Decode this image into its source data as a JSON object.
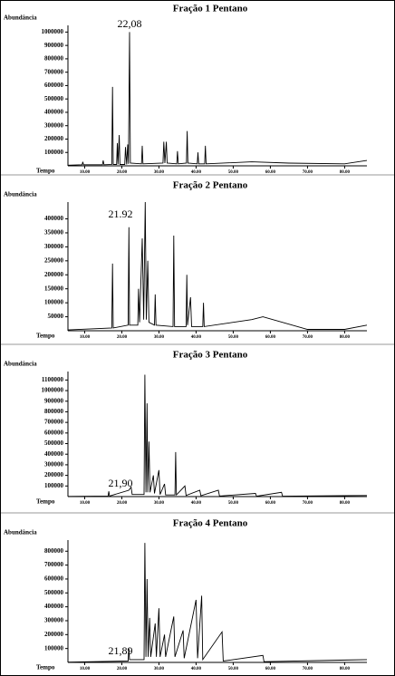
{
  "chart_data": [
    {
      "type": "line",
      "title": "Fração 1 Pentano",
      "y_label": "Abundância",
      "x_label": "Tempo",
      "annotation": "22,08",
      "color": "#000000",
      "x": [
        5.5,
        9.3,
        9.5,
        9.7,
        14.8,
        15,
        15.2,
        17.3,
        17.5,
        17.7,
        18.6,
        18.8,
        19.0,
        19.3,
        19.5,
        20.8,
        21.0,
        21.3,
        21.6,
        21.8,
        22.08,
        22.3,
        25.3,
        25.5,
        25.7,
        31.1,
        31.3,
        31.6,
        32.0,
        32.2,
        34.8,
        35,
        35.2,
        37.4,
        37.6,
        37.8,
        40.3,
        40.5,
        40.7,
        42.3,
        42.5,
        42.7,
        55,
        65,
        80,
        86
      ],
      "values": [
        5000,
        8000,
        30000,
        8000,
        8000,
        40000,
        8000,
        10000,
        590000,
        10000,
        10000,
        170000,
        10000,
        230000,
        10000,
        10000,
        140000,
        10000,
        160000,
        15000,
        1000000,
        20000,
        15000,
        150000,
        15000,
        20000,
        180000,
        20000,
        180000,
        20000,
        15000,
        110000,
        15000,
        20000,
        260000,
        20000,
        15000,
        100000,
        15000,
        15000,
        150000,
        15000,
        30000,
        20000,
        15000,
        40000
      ],
      "xlim": [
        5.5,
        86
      ],
      "ylim": [
        0,
        1050000
      ],
      "xticks": [
        {
          "value": 10,
          "label": "10.00"
        },
        {
          "value": 20,
          "label": "20.00"
        },
        {
          "value": 30,
          "label": "30.00"
        },
        {
          "value": 40,
          "label": "40.00"
        },
        {
          "value": 50,
          "label": "50.00"
        },
        {
          "value": 60,
          "label": "60.00"
        },
        {
          "value": 70,
          "label": "70.00"
        },
        {
          "value": 80,
          "label": "80.00"
        }
      ],
      "yticks": [
        100000,
        200000,
        300000,
        400000,
        500000,
        600000,
        700000,
        800000,
        900000,
        1000000
      ]
    },
    {
      "type": "line",
      "title": "Fração 2 Pentano",
      "y_label": "Abundância",
      "x_label": "Tempo",
      "annotation": "21.92",
      "color": "#000000",
      "x": [
        5.5,
        17.3,
        17.5,
        17.7,
        21.7,
        21.92,
        22.1,
        24.3,
        24.5,
        24.8,
        25.5,
        25.9,
        26.3,
        26.6,
        27.0,
        27.3,
        28.8,
        29.0,
        29.2,
        33.8,
        34.0,
        34.2,
        37.3,
        37.5,
        37.7,
        38.5,
        38.8,
        41.8,
        42.0,
        42.2,
        55,
        58,
        70,
        80,
        86
      ],
      "values": [
        3000,
        10000,
        240000,
        10000,
        20000,
        370000,
        20000,
        20000,
        150000,
        30000,
        330000,
        40000,
        460000,
        40000,
        250000,
        30000,
        20000,
        130000,
        20000,
        15000,
        340000,
        15000,
        15000,
        200000,
        20000,
        120000,
        15000,
        15000,
        100000,
        15000,
        40000,
        50000,
        5000,
        5000,
        20000
      ],
      "xlim": [
        5.5,
        86
      ],
      "ylim": [
        0,
        460000
      ],
      "xticks": [
        {
          "value": 10,
          "label": "10.00"
        },
        {
          "value": 20,
          "label": "20.00"
        },
        {
          "value": 30,
          "label": "30.00"
        },
        {
          "value": 40,
          "label": "40.00"
        },
        {
          "value": 50,
          "label": "50.00"
        },
        {
          "value": 60,
          "label": "60.00"
        },
        {
          "value": 70,
          "label": "70.00"
        },
        {
          "value": 80,
          "label": "80.00"
        }
      ],
      "yticks": [
        50000,
        100000,
        150000,
        200000,
        250000,
        300000,
        350000,
        400000
      ]
    },
    {
      "type": "line",
      "title": "Fração 3 Pentano",
      "y_label": "Abundância",
      "x_label": "Tempo",
      "annotation": "21,90",
      "color": "#000000",
      "x": [
        5.5,
        16.3,
        16.5,
        16.7,
        21.9,
        22.5,
        22.8,
        26.0,
        26.2,
        26.5,
        26.8,
        27.0,
        27.3,
        27.6,
        28.5,
        28.8,
        30.0,
        30.3,
        31.5,
        31.8,
        34.3,
        34.5,
        34.7,
        37.0,
        37.3,
        41.0,
        41.3,
        46.0,
        46.3,
        56,
        56.3,
        63,
        63.3,
        86
      ],
      "values": [
        2000,
        5000,
        50000,
        5000,
        60000,
        90000,
        20000,
        20000,
        1150000,
        40000,
        880000,
        40000,
        520000,
        40000,
        200000,
        30000,
        250000,
        20000,
        120000,
        15000,
        15000,
        420000,
        15000,
        100000,
        10000,
        60000,
        8000,
        60000,
        5000,
        30000,
        3000,
        40000,
        3000,
        10000
      ],
      "xlim": [
        5.5,
        86
      ],
      "ylim": [
        0,
        1180000
      ],
      "xticks": [
        {
          "value": 10,
          "label": "10.00"
        },
        {
          "value": 20,
          "label": "20.00"
        },
        {
          "value": 30,
          "label": "30.00"
        },
        {
          "value": 40,
          "label": "40.00"
        },
        {
          "value": 50,
          "label": "50.00"
        },
        {
          "value": 60,
          "label": "60.00"
        },
        {
          "value": 70,
          "label": "70.00"
        },
        {
          "value": 80,
          "label": "80.00"
        }
      ],
      "yticks": [
        100000,
        200000,
        300000,
        400000,
        500000,
        600000,
        700000,
        800000,
        900000,
        1000000,
        1100000
      ]
    },
    {
      "type": "line",
      "title": "Fração 4 Pentano",
      "y_label": "Abundância",
      "x_label": "Tempo",
      "annotation": "21,89",
      "color": "#000000",
      "x": [
        5.5,
        21.7,
        21.89,
        22.1,
        26.0,
        26.2,
        26.5,
        26.8,
        27.1,
        27.5,
        27.8,
        29.0,
        29.3,
        30.0,
        30.3,
        31.5,
        31.8,
        34.0,
        34.3,
        36.5,
        36.8,
        40.0,
        40.4,
        41.5,
        41.8,
        47.0,
        47.3,
        58,
        58.3,
        86
      ],
      "values": [
        2000,
        10000,
        100000,
        20000,
        20000,
        860000,
        40000,
        600000,
        40000,
        320000,
        40000,
        280000,
        40000,
        390000,
        40000,
        200000,
        40000,
        330000,
        40000,
        230000,
        30000,
        450000,
        30000,
        480000,
        20000,
        220000,
        10000,
        50000,
        5000,
        20000
      ],
      "xlim": [
        5.5,
        86
      ],
      "ylim": [
        0,
        880000
      ],
      "xticks": [
        {
          "value": 10,
          "label": "10.00"
        },
        {
          "value": 20,
          "label": "20.00"
        },
        {
          "value": 30,
          "label": "30.00"
        },
        {
          "value": 40,
          "label": "40.00"
        },
        {
          "value": 50,
          "label": "50.00"
        },
        {
          "value": 60,
          "label": "60.00"
        },
        {
          "value": 70,
          "label": "70.00"
        },
        {
          "value": 80,
          "label": "80.00"
        }
      ],
      "yticks": [
        100000,
        200000,
        300000,
        400000,
        500000,
        600000,
        700000,
        800000
      ]
    }
  ]
}
